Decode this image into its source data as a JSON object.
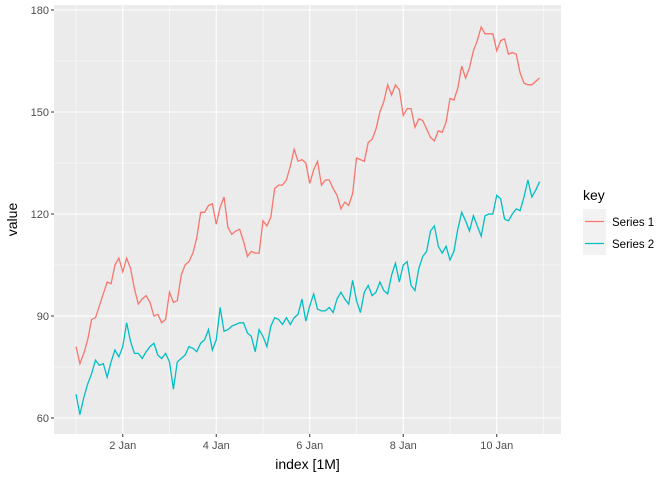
{
  "chart_data": {
    "type": "line",
    "xlabel": "index [1M]",
    "ylabel": "value",
    "x_start": "1 Jan 00:00",
    "x_interval": "2 hours",
    "x_ticks": [
      "2 Jan",
      "4 Jan",
      "6 Jan",
      "8 Jan",
      "10 Jan"
    ],
    "y_ticks": [
      "60",
      "90",
      "120",
      "150",
      "180"
    ],
    "ylim": [
      56,
      181
    ],
    "grid": true,
    "legend": {
      "title": "key",
      "position": "right"
    },
    "series": [
      {
        "name": "Series 1",
        "color": "#F8766D",
        "values": [
          81,
          76,
          79,
          83,
          89,
          89.5,
          93,
          96.5,
          100,
          99.5,
          105,
          107,
          103,
          107,
          104,
          98,
          93.5,
          95,
          96,
          94,
          90,
          90.5,
          88,
          89,
          97,
          94,
          94.5,
          102,
          105,
          106,
          108.5,
          113,
          120.5,
          120.5,
          122.5,
          123,
          117,
          122,
          125,
          116,
          114,
          115,
          115.5,
          112,
          107.5,
          109,
          108.5,
          108.5,
          118,
          116.5,
          119,
          127.5,
          128.5,
          128.5,
          130,
          134,
          139,
          135.5,
          136,
          135,
          129,
          133,
          135.5,
          128.5,
          130,
          130,
          127.5,
          125.5,
          121.5,
          123.5,
          122.5,
          126,
          136.5,
          136,
          135.5,
          141,
          142,
          145,
          150,
          153,
          158,
          155,
          158,
          156.5,
          149,
          151,
          151,
          145.5,
          148,
          147.5,
          145,
          142.5,
          141.5,
          144.5,
          144,
          147,
          154,
          153.5,
          157,
          163.5,
          160,
          163,
          168,
          171,
          175,
          173,
          173,
          173,
          168,
          171,
          171.5,
          167,
          167.5,
          167,
          161.5,
          158.5,
          158,
          158,
          159,
          160
        ]
      },
      {
        "name": "Series 2",
        "color": "#00BFC4",
        "values": [
          67,
          61,
          66,
          70,
          73,
          77,
          75.5,
          76,
          72,
          76.5,
          80,
          78,
          81,
          88,
          82.5,
          79,
          79,
          77.5,
          79.5,
          81,
          82,
          78.5,
          77.5,
          79,
          76.5,
          68.5,
          76.5,
          77.5,
          78.5,
          81,
          80.5,
          79.5,
          82,
          83,
          86,
          80,
          83,
          92.5,
          85.5,
          86,
          87,
          87.5,
          88,
          88,
          85,
          84,
          79.5,
          86,
          84,
          81,
          87,
          89.5,
          89,
          87.5,
          89.5,
          87.5,
          89.5,
          90.5,
          95,
          88.5,
          93,
          96.5,
          92,
          91.5,
          91.5,
          92.5,
          91,
          95,
          97,
          95,
          93.5,
          100.5,
          94.5,
          91,
          97,
          99,
          96,
          97,
          100,
          97.5,
          96.5,
          102,
          105.5,
          100,
          105,
          106,
          99,
          97.5,
          104,
          107.5,
          109,
          115,
          116.5,
          110.5,
          108.5,
          110.5,
          106.5,
          109,
          115.5,
          120.5,
          118,
          115,
          119.5,
          116.5,
          113.5,
          119.5,
          120,
          120,
          125.5,
          124.5,
          118.5,
          118,
          120,
          121.5,
          121,
          125,
          130,
          125,
          127,
          129.5
        ]
      }
    ]
  }
}
